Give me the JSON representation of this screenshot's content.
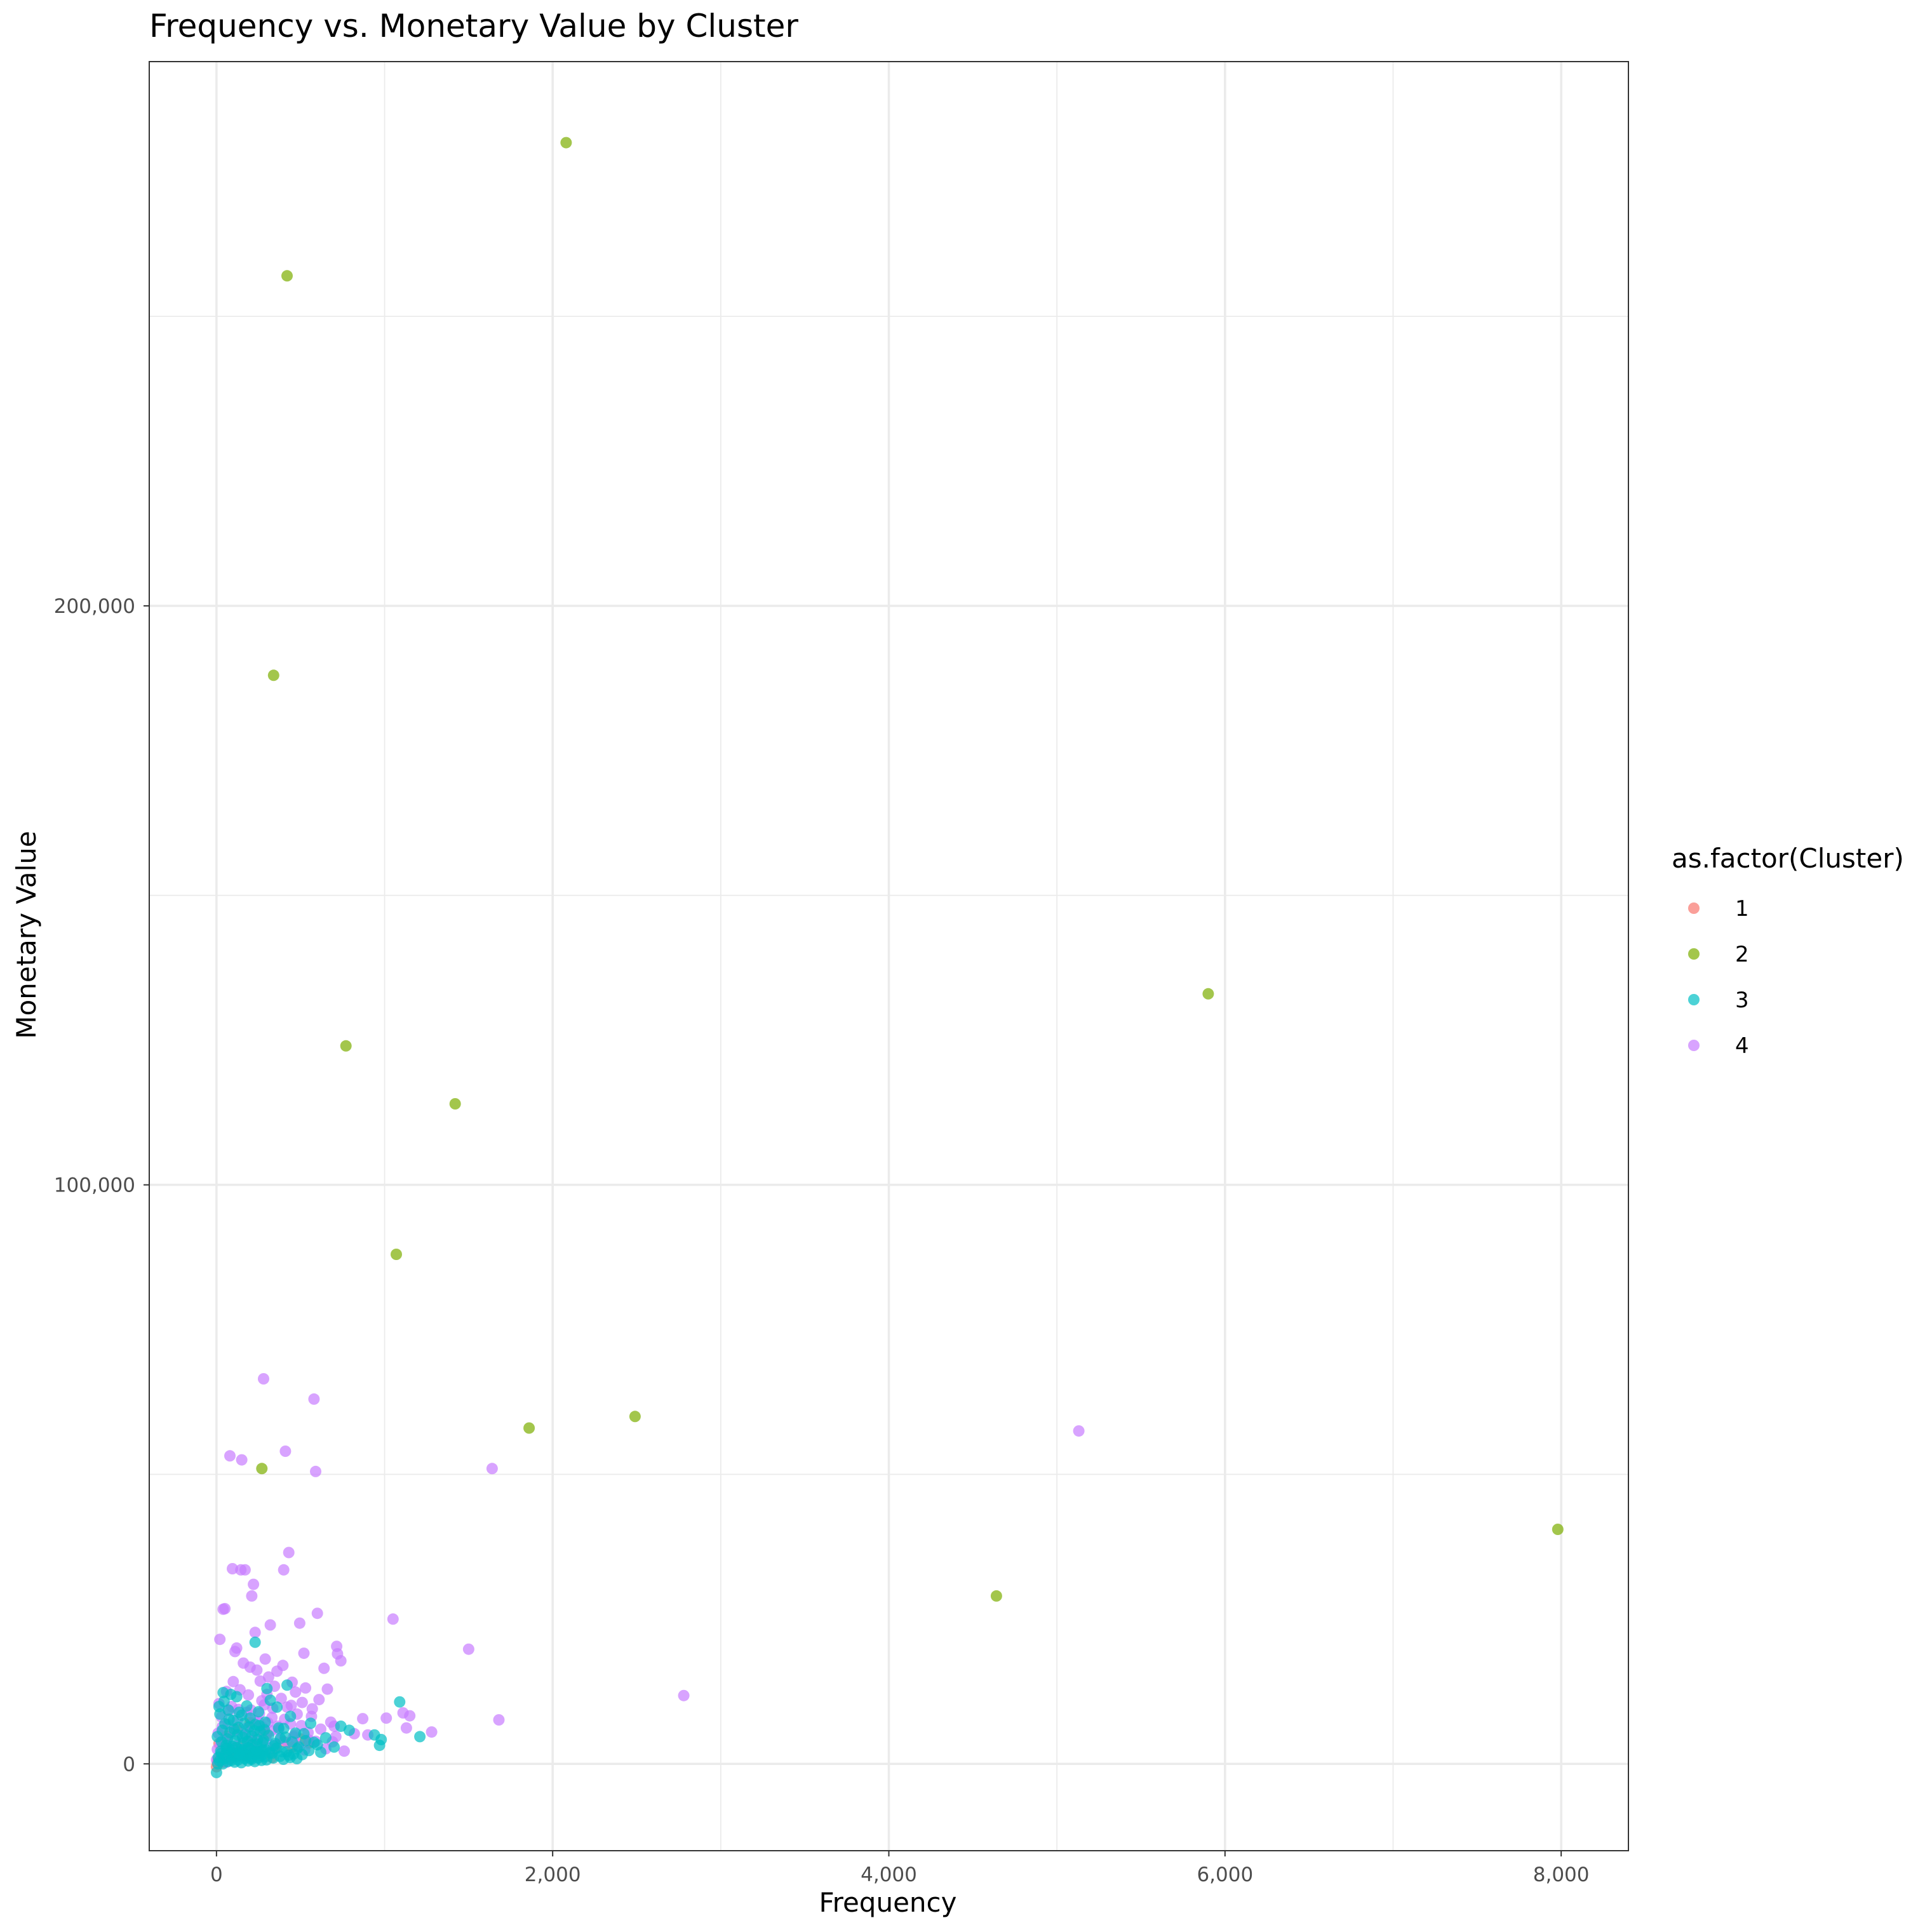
{
  "chart_data": {
    "type": "scatter",
    "title": "Frequency vs. Monetary Value by Cluster",
    "xlabel": "Frequency",
    "ylabel": "Monetary Value",
    "xlim": [
      -400,
      8400
    ],
    "ylim": [
      -15000,
      294000
    ],
    "x_ticks": [
      0,
      2000,
      4000,
      6000,
      8000
    ],
    "x_tick_labels": [
      "0",
      "2,000",
      "4,000",
      "6,000",
      "8,000"
    ],
    "y_ticks": [
      0,
      100000,
      200000
    ],
    "y_tick_labels": [
      "0",
      "100,000",
      "200,000"
    ],
    "grid": true,
    "legend": {
      "title": "as.factor(Cluster)",
      "position": "right"
    },
    "series": [
      {
        "name": "1",
        "color": "#F8766D",
        "points": [
          [
            0,
            -500
          ],
          [
            5,
            200
          ],
          [
            10,
            600
          ],
          [
            20,
            1200
          ],
          [
            35,
            800
          ],
          [
            50,
            1500
          ],
          [
            70,
            2200
          ],
          [
            90,
            1000
          ],
          [
            110,
            2600
          ],
          [
            130,
            1800
          ],
          [
            150,
            3200
          ],
          [
            180,
            2500
          ],
          [
            210,
            4000
          ],
          [
            250,
            3000
          ],
          [
            300,
            5200
          ],
          [
            350,
            2700
          ],
          [
            400,
            3800
          ],
          [
            450,
            2900
          ],
          [
            500,
            4300
          ],
          [
            550,
            3600
          ],
          [
            15,
            3500
          ],
          [
            60,
            4800
          ],
          [
            120,
            6000
          ],
          [
            200,
            7100
          ],
          [
            280,
            5600
          ],
          [
            40,
            300
          ],
          [
            80,
            900
          ],
          [
            160,
            1400
          ],
          [
            240,
            2100
          ],
          [
            330,
            1100
          ]
        ]
      },
      {
        "name": "2",
        "color": "#7CAE00",
        "points": [
          [
            2080,
            280000
          ],
          [
            420,
            257000
          ],
          [
            340,
            188000
          ],
          [
            5900,
            133000
          ],
          [
            770,
            124000
          ],
          [
            1420,
            114000
          ],
          [
            1070,
            88000
          ],
          [
            1860,
            58000
          ],
          [
            2490,
            60000
          ],
          [
            270,
            51000
          ],
          [
            4640,
            29000
          ],
          [
            7980,
            40500
          ]
        ]
      },
      {
        "name": "3",
        "color": "#00BFC4",
        "points": [
          [
            230,
            21000
          ],
          [
            1090,
            10700
          ],
          [
            1210,
            4700
          ],
          [
            970,
            3200
          ],
          [
            980,
            4200
          ],
          [
            790,
            5800
          ],
          [
            940,
            5000
          ],
          [
            740,
            6500
          ],
          [
            700,
            2900
          ],
          [
            650,
            4500
          ],
          [
            600,
            3300
          ],
          [
            560,
            7000
          ],
          [
            520,
            5200
          ],
          [
            480,
            2600
          ],
          [
            440,
            8200
          ],
          [
            420,
            13600
          ],
          [
            400,
            6100
          ],
          [
            380,
            4400
          ],
          [
            360,
            9800
          ],
          [
            340,
            3100
          ],
          [
            320,
            11000
          ],
          [
            300,
            13000
          ],
          [
            290,
            7200
          ],
          [
            280,
            4100
          ],
          [
            270,
            2300
          ],
          [
            260,
            5600
          ],
          [
            250,
            9000
          ],
          [
            240,
            3400
          ],
          [
            230,
            6800
          ],
          [
            220,
            1900
          ],
          [
            210,
            4800
          ],
          [
            200,
            7900
          ],
          [
            190,
            2800
          ],
          [
            180,
            10000
          ],
          [
            170,
            5100
          ],
          [
            160,
            3600
          ],
          [
            150,
            8400
          ],
          [
            140,
            2100
          ],
          [
            130,
            6300
          ],
          [
            120,
            11600
          ],
          [
            110,
            4000
          ],
          [
            100,
            7500
          ],
          [
            90,
            1500
          ],
          [
            80,
            5400
          ],
          [
            70,
            9300
          ],
          [
            60,
            2700
          ],
          [
            50,
            6900
          ],
          [
            40,
            12300
          ],
          [
            30,
            3800
          ],
          [
            20,
            8600
          ],
          [
            10,
            1100
          ],
          [
            5,
            4700
          ],
          [
            15,
            9900
          ],
          [
            25,
            2200
          ],
          [
            35,
            5800
          ],
          [
            45,
            10800
          ],
          [
            55,
            1700
          ],
          [
            65,
            4300
          ],
          [
            75,
            7700
          ],
          [
            85,
            12000
          ],
          [
            95,
            3000
          ],
          [
            105,
            6000
          ],
          [
            115,
            1300
          ],
          [
            125,
            5000
          ],
          [
            135,
            8900
          ],
          [
            145,
            2500
          ],
          [
            155,
            4600
          ],
          [
            165,
            7000
          ],
          [
            175,
            1600
          ],
          [
            185,
            3900
          ],
          [
            195,
            6400
          ],
          [
            205,
            1000
          ],
          [
            215,
            3300
          ],
          [
            225,
            5700
          ],
          [
            235,
            2000
          ],
          [
            245,
            4200
          ],
          [
            255,
            6600
          ],
          [
            265,
            1400
          ],
          [
            275,
            3700
          ],
          [
            285,
            5900
          ],
          [
            295,
            2400
          ],
          [
            310,
            4900
          ],
          [
            330,
            1800
          ],
          [
            350,
            3500
          ],
          [
            370,
            6200
          ],
          [
            390,
            2100
          ],
          [
            410,
            4600
          ],
          [
            430,
            1500
          ],
          [
            450,
            3800
          ],
          [
            470,
            5300
          ],
          [
            490,
            2900
          ],
          [
            510,
            1600
          ],
          [
            530,
            4000
          ],
          [
            550,
            2300
          ],
          [
            580,
            3700
          ],
          [
            620,
            2000
          ],
          [
            0,
            -1500
          ],
          [
            8,
            0
          ],
          [
            18,
            500
          ],
          [
            28,
            1800
          ],
          [
            38,
            0
          ],
          [
            48,
            900
          ],
          [
            58,
            3200
          ],
          [
            68,
            400
          ],
          [
            78,
            2500
          ],
          [
            88,
            600
          ],
          [
            98,
            1900
          ],
          [
            108,
            300
          ],
          [
            118,
            2800
          ],
          [
            128,
            700
          ],
          [
            138,
            1600
          ],
          [
            148,
            200
          ],
          [
            158,
            2300
          ],
          [
            168,
            900
          ],
          [
            178,
            1400
          ],
          [
            188,
            500
          ],
          [
            198,
            2600
          ],
          [
            208,
            800
          ],
          [
            218,
            1700
          ],
          [
            228,
            400
          ],
          [
            238,
            2200
          ],
          [
            248,
            1000
          ],
          [
            258,
            1800
          ],
          [
            268,
            600
          ],
          [
            278,
            2400
          ],
          [
            288,
            1200
          ],
          [
            298,
            700
          ],
          [
            318,
            1900
          ],
          [
            338,
            1000
          ],
          [
            358,
            2700
          ],
          [
            378,
            1300
          ],
          [
            398,
            800
          ],
          [
            418,
            2100
          ],
          [
            438,
            1100
          ],
          [
            458,
            1700
          ],
          [
            478,
            900
          ]
        ]
      },
      {
        "name": "4",
        "color": "#C77CFF",
        "points": [
          [
            5130,
            57500
          ],
          [
            2780,
            11800
          ],
          [
            1680,
            7600
          ],
          [
            1640,
            51000
          ],
          [
            1500,
            19800
          ],
          [
            1280,
            5500
          ],
          [
            1150,
            8300
          ],
          [
            1130,
            6200
          ],
          [
            1110,
            8800
          ],
          [
            1050,
            25000
          ],
          [
            1010,
            7900
          ],
          [
            900,
            5000
          ],
          [
            870,
            7800
          ],
          [
            820,
            5200
          ],
          [
            740,
            17800
          ],
          [
            720,
            19000
          ],
          [
            715,
            20300
          ],
          [
            700,
            6500
          ],
          [
            690,
            3800
          ],
          [
            680,
            7200
          ],
          [
            660,
            12900
          ],
          [
            640,
            16500
          ],
          [
            610,
            11100
          ],
          [
            600,
            26000
          ],
          [
            590,
            50500
          ],
          [
            580,
            63000
          ],
          [
            570,
            9500
          ],
          [
            550,
            4100
          ],
          [
            530,
            13100
          ],
          [
            520,
            19100
          ],
          [
            510,
            10600
          ],
          [
            495,
            24300
          ],
          [
            480,
            8600
          ],
          [
            470,
            12400
          ],
          [
            460,
            4700
          ],
          [
            450,
            14100
          ],
          [
            440,
            6900
          ],
          [
            430,
            36500
          ],
          [
            420,
            9800
          ],
          [
            410,
            54000
          ],
          [
            400,
            33500
          ],
          [
            395,
            17000
          ],
          [
            385,
            11300
          ],
          [
            370,
            5900
          ],
          [
            360,
            16000
          ],
          [
            345,
            13400
          ],
          [
            330,
            8000
          ],
          [
            320,
            24000
          ],
          [
            310,
            15000
          ],
          [
            300,
            12000
          ],
          [
            290,
            18100
          ],
          [
            280,
            66500
          ],
          [
            270,
            10900
          ],
          [
            260,
            14300
          ],
          [
            250,
            7300
          ],
          [
            240,
            16200
          ],
          [
            230,
            22700
          ],
          [
            220,
            31000
          ],
          [
            210,
            29000
          ],
          [
            200,
            16700
          ],
          [
            190,
            11900
          ],
          [
            180,
            8900
          ],
          [
            170,
            33500
          ],
          [
            160,
            17400
          ],
          [
            150,
            52500
          ],
          [
            145,
            33500
          ],
          [
            140,
            12800
          ],
          [
            130,
            9400
          ],
          [
            120,
            20000
          ],
          [
            110,
            19400
          ],
          [
            100,
            14200
          ],
          [
            95,
            33700
          ],
          [
            90,
            9900
          ],
          [
            80,
            53200
          ],
          [
            70,
            6800
          ],
          [
            60,
            12500
          ],
          [
            50,
            26800
          ],
          [
            45,
            4000
          ],
          [
            40,
            26700
          ],
          [
            30,
            8100
          ],
          [
            20,
            21500
          ],
          [
            10,
            5300
          ],
          [
            5,
            2500
          ],
          [
            15,
            10400
          ],
          [
            25,
            3600
          ],
          [
            35,
            6400
          ],
          [
            55,
            1900
          ],
          [
            65,
            4500
          ],
          [
            75,
            9200
          ],
          [
            85,
            2800
          ],
          [
            105,
            5600
          ],
          [
            115,
            3100
          ],
          [
            125,
            7600
          ],
          [
            135,
            1700
          ],
          [
            155,
            4900
          ],
          [
            165,
            2600
          ],
          [
            175,
            6100
          ],
          [
            185,
            3000
          ],
          [
            195,
            5400
          ],
          [
            205,
            9300
          ],
          [
            215,
            3900
          ],
          [
            225,
            7500
          ],
          [
            235,
            2400
          ],
          [
            245,
            5100
          ],
          [
            255,
            8700
          ],
          [
            265,
            3500
          ],
          [
            275,
            6300
          ],
          [
            285,
            10200
          ],
          [
            295,
            4300
          ],
          [
            305,
            7100
          ],
          [
            315,
            2700
          ],
          [
            325,
            5700
          ],
          [
            335,
            9600
          ],
          [
            350,
            3300
          ],
          [
            365,
            6500
          ],
          [
            380,
            4200
          ],
          [
            405,
            7700
          ],
          [
            425,
            3700
          ],
          [
            445,
            10100
          ],
          [
            465,
            5000
          ],
          [
            485,
            3200
          ],
          [
            505,
            6600
          ],
          [
            525,
            2400
          ],
          [
            545,
            5400
          ],
          [
            565,
            8200
          ],
          [
            590,
            3900
          ],
          [
            620,
            6000
          ],
          [
            650,
            2600
          ],
          [
            710,
            4700
          ],
          [
            760,
            2200
          ],
          [
            0,
            700
          ],
          [
            30,
            1200
          ],
          [
            60,
            300
          ]
        ]
      }
    ]
  }
}
